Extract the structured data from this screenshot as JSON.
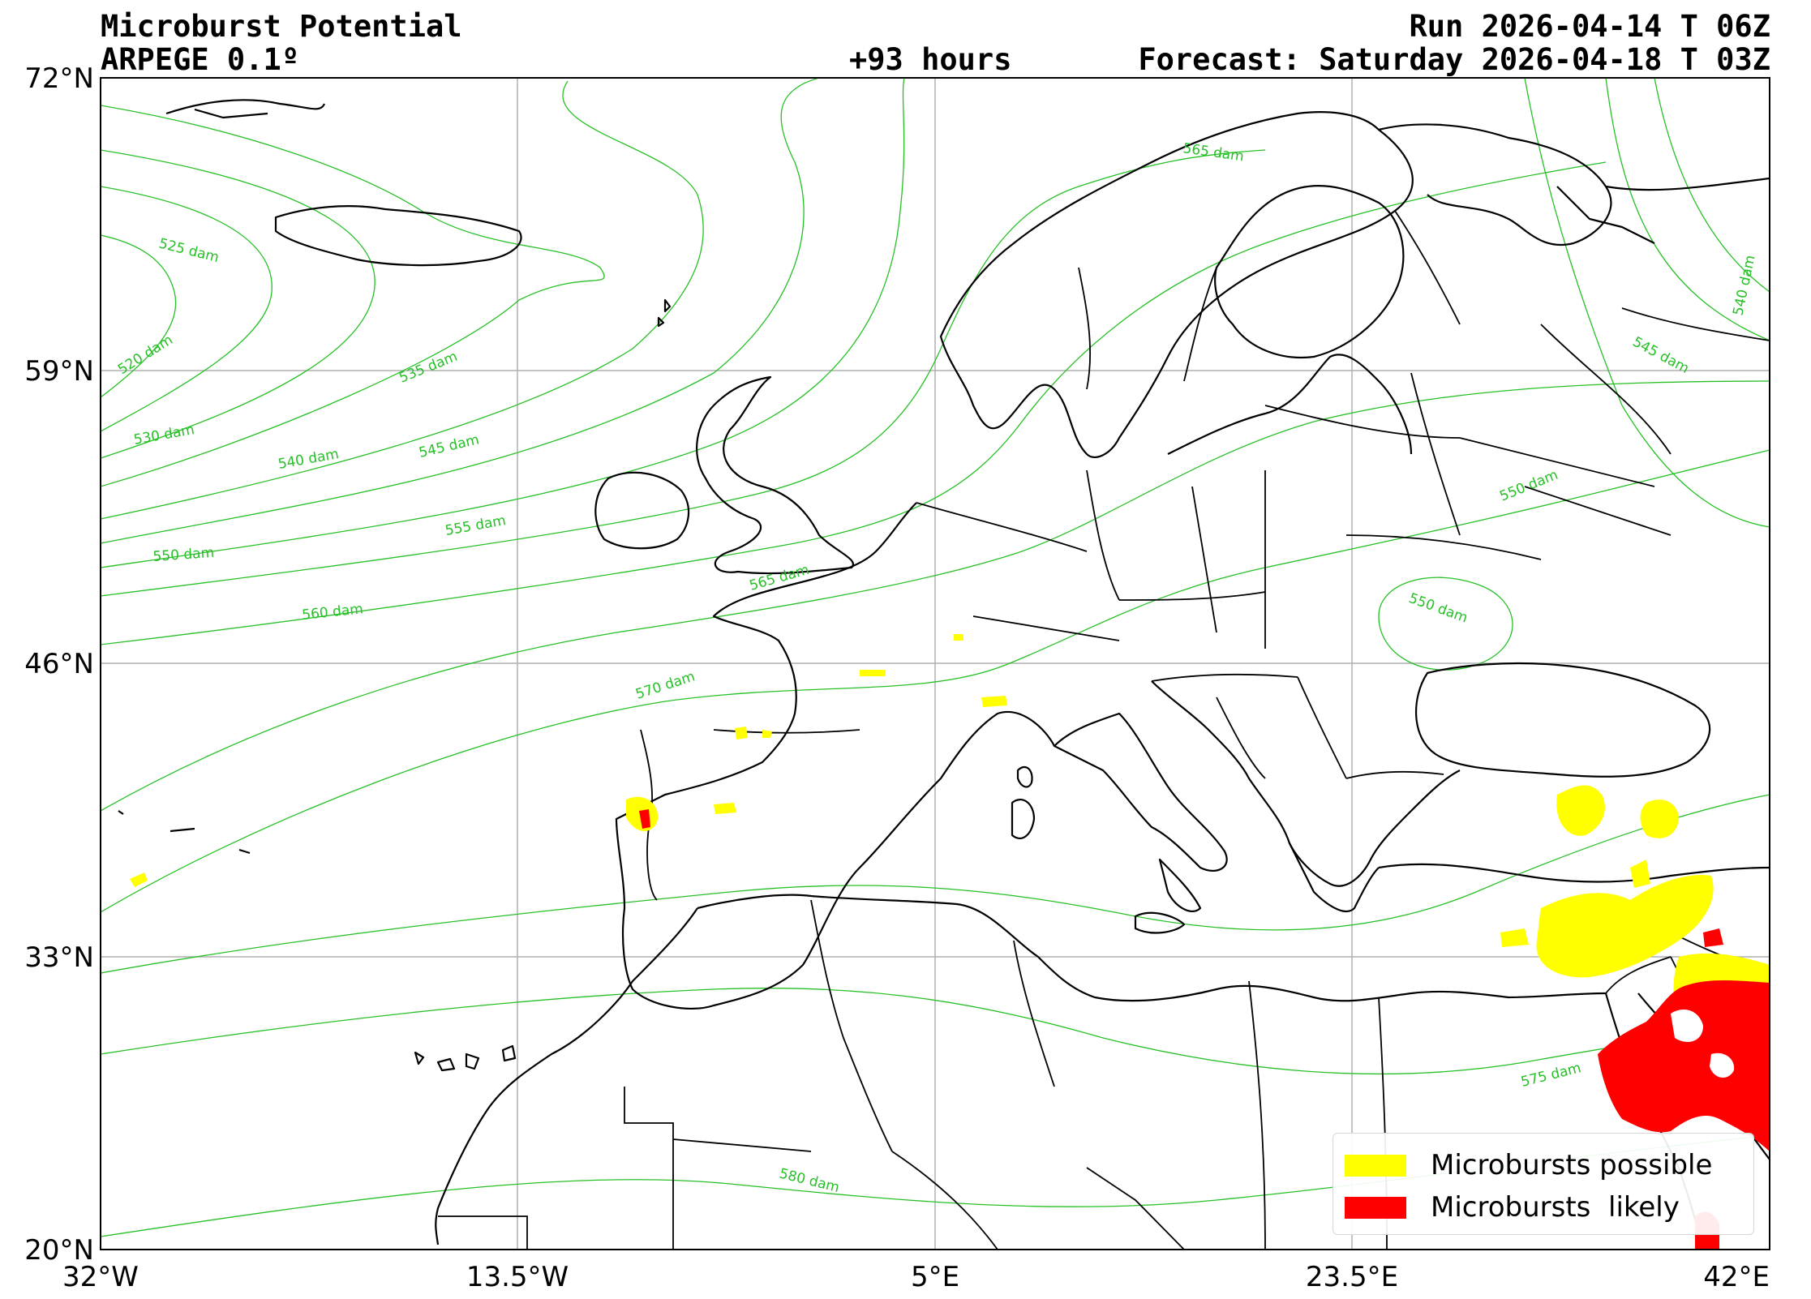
{
  "header": {
    "title": "Microburst Potential",
    "model": "ARPEGE 0.1º",
    "lead_time": "+93 hours",
    "run": "Run 2026-04-14 T 06Z",
    "forecast": "Forecast: Saturday 2026-04-18 T 03Z"
  },
  "axes": {
    "lat_ticks": [
      "72°N",
      "59°N",
      "46°N",
      "33°N",
      "20°N"
    ],
    "lon_ticks": [
      "32°W",
      "13.5°W",
      "5°E",
      "23.5°E",
      "42°E"
    ],
    "lon_range": [
      -32,
      42
    ],
    "lat_range": [
      20,
      72
    ],
    "grid": true
  },
  "contours": {
    "color": "#27c027",
    "unit": "dam",
    "labels": [
      "520 dam",
      "525 dam",
      "530 dam",
      "535 dam",
      "540 dam",
      "545 dam",
      "550 dam",
      "555 dam",
      "560 dam",
      "565 dam",
      "570 dam",
      "575 dam",
      "580 dam",
      "540 dam",
      "545 dam",
      "550 dam",
      "550 dam",
      "565 dam"
    ]
  },
  "legend": {
    "placement": "lower-right",
    "items": [
      {
        "label": "Microbursts possible",
        "color": "#ffff00"
      },
      {
        "label": "Microbursts  likely",
        "color": "#ff0000"
      }
    ]
  }
}
